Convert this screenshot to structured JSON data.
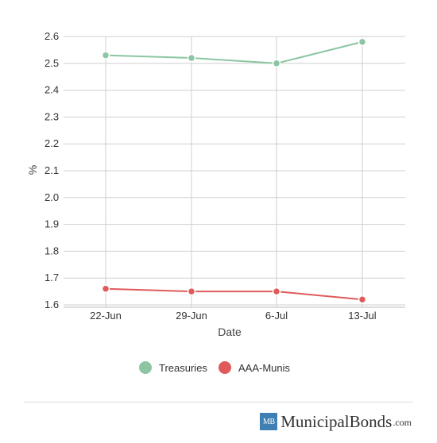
{
  "chart_data": {
    "type": "line",
    "categories": [
      "22-Jun",
      "29-Jun",
      "6-Jul",
      "13-Jul"
    ],
    "series": [
      {
        "name": "Treasuries",
        "values": [
          2.53,
          2.52,
          2.5,
          2.58
        ],
        "color": "#8cc5a2"
      },
      {
        "name": "AAA-Munis",
        "values": [
          1.66,
          1.65,
          1.65,
          1.62
        ],
        "color": "#e05a5a"
      }
    ],
    "xlabel": "Date",
    "ylabel": "%",
    "ylim": [
      1.6,
      2.6
    ],
    "yticks": [
      "1.6",
      "1.7",
      "1.8",
      "1.9",
      "2.0",
      "2.1",
      "2.2",
      "2.3",
      "2.4",
      "2.5",
      "2.6"
    ],
    "grid": true,
    "legend_position": "bottom"
  },
  "brand": {
    "logo_text": "MB",
    "name": "MunicipalBonds",
    "tld": ".com"
  }
}
